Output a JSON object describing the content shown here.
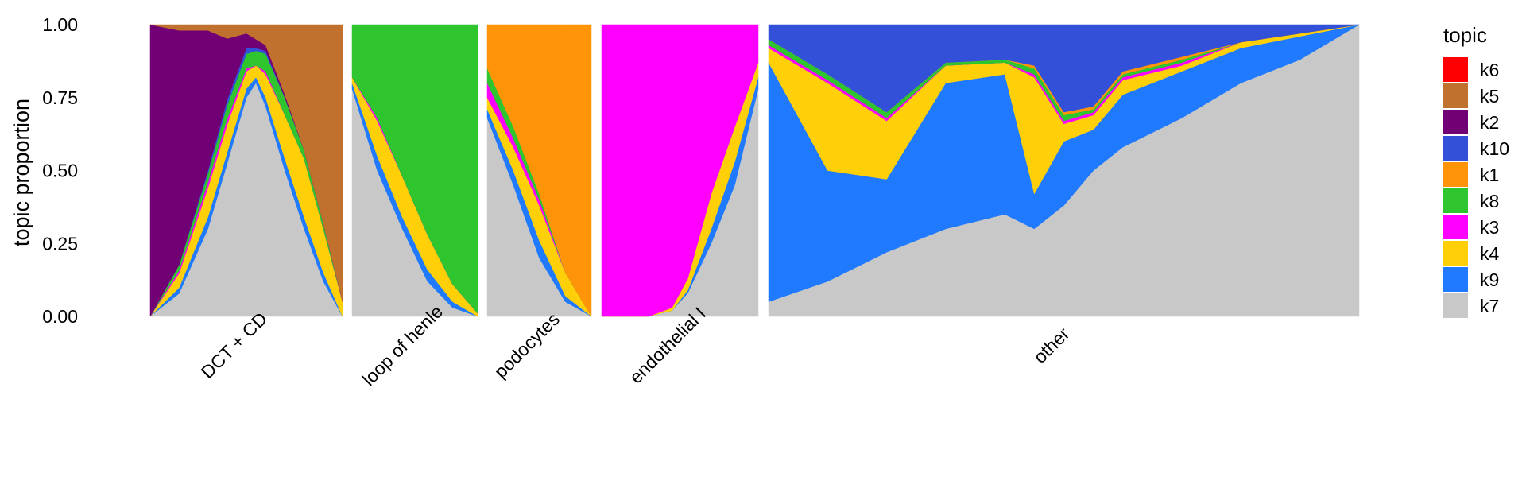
{
  "chart_data": {
    "type": "structure-plot",
    "ylabel": "topic proportion",
    "ylim": [
      0,
      1
    ],
    "y_ticks": [
      "0.00",
      "0.25",
      "0.50",
      "0.75",
      "1.00"
    ],
    "grid": false,
    "legend": {
      "title": "topic",
      "position": "right",
      "entries": [
        {
          "name": "k6",
          "color": "#FF0000"
        },
        {
          "name": "k5",
          "color": "#C1712E"
        },
        {
          "name": "k2",
          "color": "#700073"
        },
        {
          "name": "k10",
          "color": "#3350D8"
        },
        {
          "name": "k1",
          "color": "#FF9408"
        },
        {
          "name": "k8",
          "color": "#2EC52E"
        },
        {
          "name": "k3",
          "color": "#FF00FF"
        },
        {
          "name": "k4",
          "color": "#FFCF08"
        },
        {
          "name": "k9",
          "color": "#1F7AFF"
        },
        {
          "name": "k7",
          "color": "#C8C8C8"
        }
      ]
    },
    "stack_order_bottom_to_top": [
      "k7",
      "k9",
      "k4",
      "k3",
      "k8",
      "k1",
      "k10",
      "k2",
      "k5",
      "k6"
    ],
    "groups": [
      {
        "label": "DCT + CD",
        "profile_x": [
          0,
          0.15,
          0.3,
          0.4,
          0.5,
          0.55,
          0.6,
          0.7,
          0.8,
          0.9,
          1
        ],
        "profile": {
          "k7": [
            0,
            0.08,
            0.3,
            0.55,
            0.75,
            0.8,
            0.72,
            0.5,
            0.3,
            0.12,
            0
          ],
          "k9": [
            0,
            0.02,
            0.04,
            0.04,
            0.03,
            0.02,
            0.03,
            0.04,
            0.04,
            0.03,
            0
          ],
          "k4": [
            0,
            0.05,
            0.1,
            0.1,
            0.06,
            0.04,
            0.08,
            0.15,
            0.2,
            0.15,
            0.05
          ],
          "k3": [
            0,
            0.01,
            0.02,
            0.02,
            0.01,
            0,
            0.01,
            0,
            0,
            0,
            0
          ],
          "k8": [
            0,
            0.02,
            0.03,
            0.05,
            0.05,
            0.05,
            0.06,
            0.06,
            0.03,
            0.02,
            0
          ],
          "k1": [
            0,
            0,
            0,
            0,
            0,
            0,
            0,
            0,
            0,
            0,
            0
          ],
          "k10": [
            0,
            0,
            0.01,
            0.02,
            0.02,
            0.01,
            0.01,
            0,
            0,
            0,
            0
          ],
          "k2": [
            1,
            0.82,
            0.48,
            0.22,
            0.05,
            0.03,
            0.02,
            0.01,
            0,
            0,
            0
          ],
          "k5": [
            0,
            0.02,
            0.02,
            0.05,
            0.03,
            0.05,
            0.07,
            0.24,
            0.43,
            0.68,
            0.95
          ],
          "k6": [
            0,
            0,
            0,
            0,
            0,
            0,
            0,
            0,
            0,
            0,
            0
          ]
        }
      },
      {
        "label": "loop of henle",
        "profile_x": [
          0,
          0.2,
          0.4,
          0.6,
          0.8,
          1
        ],
        "profile": {
          "k7": [
            0.78,
            0.5,
            0.3,
            0.12,
            0.03,
            0
          ],
          "k9": [
            0.02,
            0.05,
            0.04,
            0.04,
            0.02,
            0
          ],
          "k4": [
            0.02,
            0.12,
            0.14,
            0.12,
            0.06,
            0.01
          ],
          "k3": [
            0,
            0.01,
            0,
            0,
            0,
            0
          ],
          "k8": [
            0.18,
            0.32,
            0.52,
            0.72,
            0.89,
            0.99
          ],
          "k1": [
            0,
            0,
            0,
            0,
            0,
            0
          ],
          "k10": [
            0,
            0,
            0,
            0,
            0,
            0
          ],
          "k2": [
            0,
            0,
            0,
            0,
            0,
            0
          ],
          "k5": [
            0,
            0,
            0,
            0,
            0,
            0
          ],
          "k6": [
            0,
            0,
            0,
            0,
            0,
            0
          ]
        }
      },
      {
        "label": "podocytes",
        "profile_x": [
          0,
          0.25,
          0.5,
          0.75,
          1
        ],
        "profile": {
          "k7": [
            0.68,
            0.45,
            0.2,
            0.05,
            0
          ],
          "k9": [
            0.03,
            0.05,
            0.06,
            0.02,
            0
          ],
          "k4": [
            0.04,
            0.08,
            0.12,
            0.08,
            0
          ],
          "k3": [
            0.05,
            0.03,
            0.02,
            0,
            0
          ],
          "k8": [
            0.05,
            0.04,
            0.02,
            0,
            0
          ],
          "k1": [
            0.15,
            0.35,
            0.58,
            0.85,
            1
          ],
          "k10": [
            0,
            0,
            0,
            0,
            0
          ],
          "k2": [
            0,
            0,
            0,
            0,
            0
          ],
          "k5": [
            0,
            0,
            0,
            0,
            0
          ],
          "k6": [
            0,
            0,
            0,
            0,
            0
          ]
        }
      },
      {
        "label": "endothelial I",
        "profile_x": [
          0,
          0.3,
          0.45,
          0.55,
          0.7,
          0.85,
          1
        ],
        "profile": {
          "k7": [
            0,
            0,
            0.02,
            0.08,
            0.25,
            0.45,
            0.78
          ],
          "k9": [
            0,
            0,
            0,
            0.01,
            0.05,
            0.08,
            0.04
          ],
          "k4": [
            0,
            0,
            0.01,
            0.04,
            0.12,
            0.12,
            0.05
          ],
          "k3": [
            1,
            1,
            0.97,
            0.87,
            0.58,
            0.35,
            0.13
          ],
          "k8": [
            0,
            0,
            0,
            0,
            0,
            0,
            0
          ],
          "k1": [
            0,
            0,
            0,
            0,
            0,
            0,
            0
          ],
          "k10": [
            0,
            0,
            0,
            0,
            0,
            0,
            0
          ],
          "k2": [
            0,
            0,
            0,
            0,
            0,
            0,
            0
          ],
          "k5": [
            0,
            0,
            0,
            0,
            0,
            0,
            0
          ],
          "k6": [
            0,
            0,
            0,
            0,
            0,
            0,
            0
          ]
        }
      },
      {
        "label": "other",
        "profile_x": [
          0,
          0.1,
          0.2,
          0.3,
          0.4,
          0.45,
          0.5,
          0.55,
          0.6,
          0.7,
          0.8,
          0.9,
          1
        ],
        "profile": {
          "k7": [
            0.05,
            0.12,
            0.22,
            0.3,
            0.35,
            0.3,
            0.38,
            0.5,
            0.58,
            0.68,
            0.8,
            0.88,
            1
          ],
          "k9": [
            0.82,
            0.38,
            0.25,
            0.5,
            0.48,
            0.12,
            0.22,
            0.14,
            0.18,
            0.16,
            0.12,
            0.08,
            0
          ],
          "k4": [
            0.05,
            0.3,
            0.2,
            0.06,
            0.04,
            0.4,
            0.06,
            0.05,
            0.05,
            0.02,
            0.02,
            0.01,
            0
          ],
          "k3": [
            0.01,
            0.01,
            0.01,
            0,
            0,
            0.01,
            0.01,
            0.01,
            0.01,
            0.01,
            0,
            0,
            0
          ],
          "k8": [
            0.02,
            0.02,
            0.02,
            0.01,
            0.01,
            0.02,
            0.02,
            0.01,
            0.01,
            0.01,
            0,
            0,
            0
          ],
          "k1": [
            0,
            0,
            0,
            0,
            0,
            0.01,
            0.01,
            0.01,
            0.01,
            0.01,
            0,
            0,
            0
          ],
          "k10": [
            0.05,
            0.17,
            0.3,
            0.13,
            0.12,
            0.14,
            0.3,
            0.28,
            0.16,
            0.11,
            0.06,
            0.03,
            0
          ],
          "k2": [
            0,
            0,
            0,
            0,
            0,
            0,
            0,
            0,
            0,
            0,
            0,
            0,
            0
          ],
          "k5": [
            0,
            0,
            0,
            0,
            0,
            0,
            0,
            0,
            0,
            0,
            0,
            0,
            0
          ],
          "k6": [
            0,
            0,
            0,
            0,
            0,
            0,
            0,
            0,
            0,
            0,
            0,
            0,
            0
          ]
        }
      }
    ]
  }
}
